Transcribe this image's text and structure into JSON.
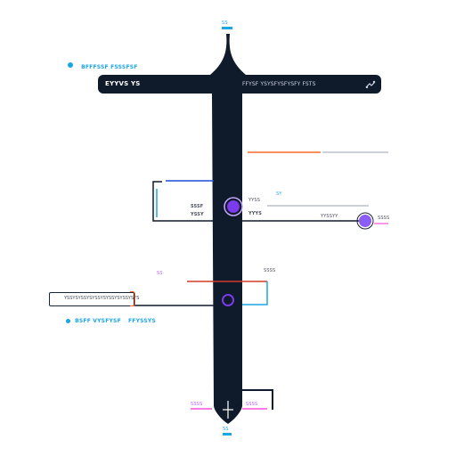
{
  "colors": {
    "navy": "#0f1a2a",
    "cyan": "#1aa6e6",
    "purple": "#7c3aed",
    "orange": "#ff6a2a",
    "pink": "#ff4fd8"
  },
  "labels": {
    "top_left_title": "BFFFSSF FSSSFSF",
    "bar_left": "EYYVS YS",
    "bar_right": "FFYSF YSYSFYSFYSFY FSTS",
    "mid_left_1": "SSSF",
    "mid_left_2": "YSSY",
    "mid_right_1": "YYSS",
    "mid_right_2": "YYYS",
    "mid_right_tag": "SY",
    "right_small": "YYSSYY",
    "right_end": "SSSS",
    "lower_left_tag": "SS",
    "lower_right_label": "SSSS",
    "left_pill_text": "YSSYSYSSYSYSSYSYSSYSYSSYSYS",
    "bottom_caption_left": "BSFF VYSFYSF",
    "bottom_caption_right": "FFYSSYS",
    "bottom_right_tag": "SSSS",
    "bottom_left_tag": "SSSS",
    "top_stem_label": "SS",
    "bottom_stem_label": "SS"
  },
  "icons": {
    "top_left": "info-dot-icon",
    "bar_right": "link-icon",
    "bottom_anchor": "cross-anchor-icon"
  }
}
